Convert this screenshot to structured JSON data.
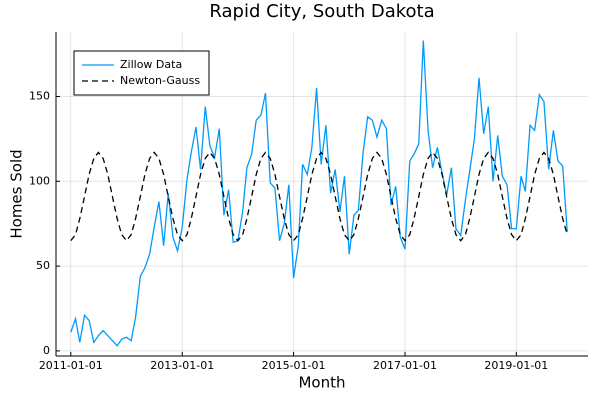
{
  "chart_data": {
    "type": "line",
    "title": "Rapid City, South Dakota",
    "x_label": "Month",
    "y_label": "Homes Sold",
    "x": [
      "2011-01-01",
      "2011-02-01",
      "2011-03-01",
      "2011-04-01",
      "2011-05-01",
      "2011-06-01",
      "2011-07-01",
      "2011-08-01",
      "2011-09-01",
      "2011-10-01",
      "2011-11-01",
      "2011-12-01",
      "2012-01-01",
      "2012-02-01",
      "2012-03-01",
      "2012-04-01",
      "2012-05-01",
      "2012-06-01",
      "2012-07-01",
      "2012-08-01",
      "2012-09-01",
      "2012-10-01",
      "2012-11-01",
      "2012-12-01",
      "2013-01-01",
      "2013-02-01",
      "2013-03-01",
      "2013-04-01",
      "2013-05-01",
      "2013-06-01",
      "2013-07-01",
      "2013-08-01",
      "2013-09-01",
      "2013-10-01",
      "2013-11-01",
      "2013-12-01",
      "2014-01-01",
      "2014-02-01",
      "2014-03-01",
      "2014-04-01",
      "2014-05-01",
      "2014-06-01",
      "2014-07-01",
      "2014-08-01",
      "2014-09-01",
      "2014-10-01",
      "2014-11-01",
      "2014-12-01",
      "2015-01-01",
      "2015-02-01",
      "2015-03-01",
      "2015-04-01",
      "2015-05-01",
      "2015-06-01",
      "2015-07-01",
      "2015-08-01",
      "2015-09-01",
      "2015-10-01",
      "2015-11-01",
      "2015-12-01",
      "2016-01-01",
      "2016-02-01",
      "2016-03-01",
      "2016-04-01",
      "2016-05-01",
      "2016-06-01",
      "2016-07-01",
      "2016-08-01",
      "2016-09-01",
      "2016-10-01",
      "2016-11-01",
      "2016-12-01",
      "2017-01-01",
      "2017-02-01",
      "2017-03-01",
      "2017-04-01",
      "2017-05-01",
      "2017-06-01",
      "2017-07-01",
      "2017-08-01",
      "2017-09-01",
      "2017-10-01",
      "2017-11-01",
      "2017-12-01",
      "2018-01-01",
      "2018-02-01",
      "2018-03-01",
      "2018-04-01",
      "2018-05-01",
      "2018-06-01",
      "2018-07-01",
      "2018-08-01",
      "2018-09-01",
      "2018-10-01",
      "2018-11-01",
      "2018-12-01",
      "2019-01-01",
      "2019-02-01",
      "2019-03-01",
      "2019-04-01",
      "2019-05-01",
      "2019-06-01",
      "2019-07-01",
      "2019-08-01",
      "2019-09-01",
      "2019-10-01",
      "2019-11-01",
      "2019-12-01"
    ],
    "series": [
      {
        "name": "Zillow Data",
        "color": "#009af9",
        "dash": "none",
        "values": [
          11,
          19,
          5,
          21,
          18,
          5,
          9,
          12,
          9,
          6,
          3,
          7,
          8,
          6,
          20,
          44,
          49,
          57,
          73,
          88,
          62,
          93,
          67,
          59,
          73,
          101,
          117,
          132,
          107,
          144,
          121,
          114,
          131,
          80,
          95,
          64,
          65,
          82,
          108,
          116,
          136,
          139,
          152,
          99,
          96,
          65,
          75,
          98,
          43,
          62,
          110,
          104,
          120,
          155,
          110,
          133,
          93,
          107,
          82,
          103,
          57,
          80,
          83,
          117,
          138,
          136,
          126,
          136,
          131,
          86,
          97,
          67,
          60,
          112,
          116,
          122,
          183,
          130,
          108,
          120,
          105,
          92,
          108,
          72,
          68,
          89,
          106,
          125,
          161,
          128,
          144,
          100,
          127,
          103,
          98,
          72,
          72,
          103,
          94,
          133,
          130,
          151,
          147,
          107,
          130,
          112,
          109,
          70
        ]
      },
      {
        "name": "Newton-Gauss",
        "color": "#000000",
        "dash": "6,4",
        "values": [
          65,
          68.5,
          78,
          91,
          104,
          113.5,
          117,
          113.5,
          104,
          91,
          78,
          68.5,
          65,
          68.5,
          78,
          91,
          104,
          113.5,
          117,
          113.5,
          104,
          91,
          78,
          68.5,
          65,
          68.5,
          78,
          91,
          104,
          113.5,
          117,
          113.5,
          104,
          91,
          78,
          68.5,
          65,
          68.5,
          78,
          91,
          104,
          113.5,
          117,
          113.5,
          104,
          91,
          78,
          68.5,
          65,
          68.5,
          78,
          91,
          104,
          113.5,
          117,
          113.5,
          104,
          91,
          78,
          68.5,
          65,
          68.5,
          78,
          91,
          104,
          113.5,
          117,
          113.5,
          104,
          91,
          78,
          68.5,
          65,
          68.5,
          78,
          91,
          104,
          113.5,
          117,
          113.5,
          104,
          91,
          78,
          68.5,
          65,
          68.5,
          78,
          91,
          104,
          113.5,
          117,
          113.5,
          104,
          91,
          78,
          68.5,
          65,
          68.5,
          78,
          91,
          104,
          113.5,
          117,
          113.5,
          104,
          91,
          78,
          68.5
        ]
      }
    ],
    "xlim": [
      "2010-09-26",
      "2020-04-15"
    ],
    "xticks": [
      "2011-01-01",
      "2013-01-01",
      "2015-01-01",
      "2017-01-01",
      "2019-01-01"
    ],
    "ylim": [
      -3,
      188
    ],
    "yticks": [
      0,
      50,
      100,
      150
    ],
    "grid": true,
    "legend": "top-left"
  }
}
